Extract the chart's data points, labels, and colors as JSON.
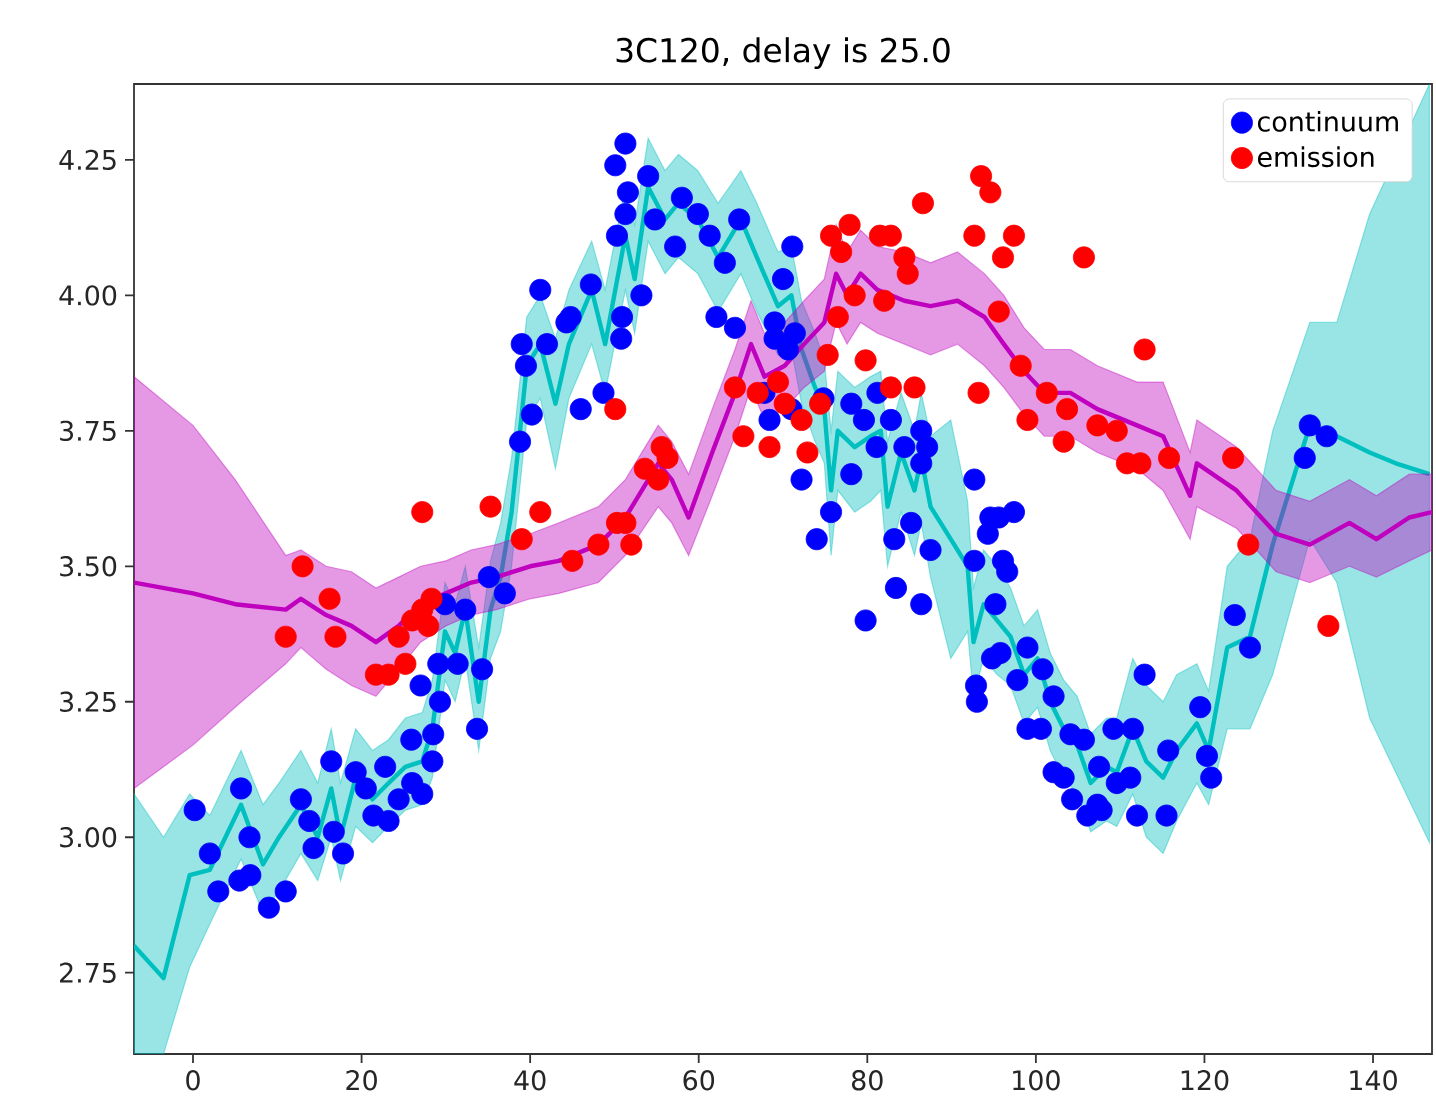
{
  "chart_data": {
    "type": "scatter",
    "title": "3C120, delay is 25.0",
    "xlim": [
      -7,
      147
    ],
    "ylim": [
      2.6,
      4.39
    ],
    "xticks": [
      0,
      20,
      40,
      60,
      80,
      100,
      120,
      140
    ],
    "yticks": [
      {
        "value": 2.75,
        "label": "2.75"
      },
      {
        "value": 3.0,
        "label": "3.00"
      },
      {
        "value": 3.25,
        "label": "3.25"
      },
      {
        "value": 3.5,
        "label": "3.50"
      },
      {
        "value": 3.75,
        "label": "3.75"
      },
      {
        "value": 4.0,
        "label": "4.00"
      },
      {
        "value": 4.25,
        "label": "4.25"
      }
    ],
    "legend": "top right",
    "series": [
      {
        "name": "continuum",
        "color": "#0000ff",
        "marker": "circle",
        "x": [
          0.2,
          2.0,
          3.0,
          5.7,
          6.7,
          5.5,
          6.8,
          9.0,
          11.0,
          12.8,
          14.3,
          13.8,
          16.4,
          16.7,
          17.8,
          19.3,
          20.5,
          21.4,
          23.2,
          22.8,
          24.4,
          25.9,
          26.0,
          27.2,
          28.4,
          28.5,
          27.0,
          29.3,
          29.1,
          31.4,
          34.3,
          33.7,
          29.9,
          32.3,
          35.1,
          37.0,
          41.2,
          39.0,
          42.0,
          39.5,
          40.2,
          38.8,
          44.3,
          51.3,
          50.1,
          54.0,
          51.6,
          58.0,
          59.9,
          51.3,
          54.8,
          50.3,
          57.2,
          61.3,
          64.8,
          63.1,
          71.1,
          70.0,
          47.2,
          53.2,
          44.8,
          50.9,
          50.8,
          62.1,
          64.3,
          48.7,
          46.0,
          69.0,
          69.0,
          71.4,
          74.8,
          78.1,
          81.2,
          82.8,
          86.4,
          87.1,
          84.4,
          86.4,
          72.2,
          75.7,
          74.0,
          78.1,
          83.2,
          85.2,
          87.5,
          92.7,
          94.6,
          94.3,
          92.7,
          96.1,
          67.8,
          68.4,
          71.0,
          70.6,
          79.6,
          81.1,
          79.8,
          83.4,
          86.4,
          92.9,
          93.0,
          94.8,
          95.2,
          97.4,
          95.6,
          96.6,
          132.5,
          134.5,
          131.9,
          95.8,
          97.8,
          99.0,
          100.8,
          102.1,
          99.0,
          100.6,
          102.1,
          103.3,
          104.1,
          105.7,
          104.3,
          106.1,
          107.3,
          107.8,
          107.5,
          109.2,
          109.6,
          111.2,
          111.5,
          112.9,
          112.0,
          115.5,
          115.7,
          119.5,
          120.3,
          120.8,
          123.6,
          125.4
        ],
        "values": [
          3.05,
          2.97,
          2.9,
          3.09,
          3.0,
          2.92,
          2.93,
          2.87,
          2.9,
          3.07,
          2.98,
          3.03,
          3.14,
          3.01,
          2.97,
          3.12,
          3.09,
          3.04,
          3.03,
          3.13,
          3.07,
          3.18,
          3.1,
          3.08,
          3.14,
          3.19,
          3.28,
          3.25,
          3.32,
          3.32,
          3.31,
          3.2,
          3.43,
          3.42,
          3.48,
          3.45,
          4.01,
          3.91,
          3.91,
          3.87,
          3.78,
          3.73,
          3.95,
          4.28,
          4.24,
          4.22,
          4.19,
          4.18,
          4.15,
          4.15,
          4.14,
          4.11,
          4.09,
          4.11,
          4.14,
          4.06,
          4.09,
          4.03,
          4.02,
          4.0,
          3.96,
          3.96,
          3.92,
          3.96,
          3.94,
          3.82,
          3.79,
          3.95,
          3.92,
          3.93,
          3.81,
          3.8,
          3.82,
          3.77,
          3.75,
          3.72,
          3.72,
          3.69,
          3.66,
          3.6,
          3.55,
          3.67,
          3.55,
          3.58,
          3.53,
          3.66,
          3.59,
          3.56,
          3.51,
          3.51,
          3.82,
          3.77,
          3.79,
          3.9,
          3.77,
          3.72,
          3.4,
          3.46,
          3.43,
          3.28,
          3.25,
          3.33,
          3.43,
          3.6,
          3.59,
          3.49,
          3.76,
          3.74,
          3.7,
          3.34,
          3.29,
          3.35,
          3.31,
          3.26,
          3.2,
          3.2,
          3.12,
          3.11,
          3.19,
          3.18,
          3.07,
          3.04,
          3.06,
          3.05,
          3.13,
          3.2,
          3.1,
          3.11,
          3.2,
          3.3,
          3.04,
          3.04,
          3.16,
          3.24,
          3.15,
          3.11,
          3.41,
          3.35
        ]
      },
      {
        "name": "emission",
        "color": "#ff0000",
        "marker": "circle",
        "x": [
          13.0,
          27.2,
          35.3,
          41.2,
          39.0,
          16.2,
          11.0,
          16.9,
          21.7,
          23.2,
          25.2,
          24.4,
          26.0,
          27.2,
          27.9,
          28.3,
          50.1,
          55.6,
          53.6,
          56.3,
          55.2,
          51.3,
          50.3,
          48.1,
          52.0,
          45.0,
          64.3,
          67.0,
          69.4,
          70.2,
          72.2,
          65.3,
          68.4,
          72.9,
          74.4,
          75.3,
          79.8,
          75.7,
          77.9,
          76.9,
          76.5,
          81.5,
          82.8,
          84.4,
          84.8,
          82.0,
          78.5,
          86.6,
          82.8,
          85.6,
          93.2,
          92.7,
          93.5,
          94.6,
          96.1,
          95.6,
          97.4,
          105.7,
          98.2,
          112.9,
          99.0,
          103.3,
          103.7,
          101.3,
          107.3,
          109.6,
          110.8,
          112.4,
          115.8,
          123.4,
          125.2,
          134.7
        ],
        "values": [
          3.5,
          3.6,
          3.61,
          3.6,
          3.55,
          3.44,
          3.37,
          3.37,
          3.3,
          3.3,
          3.32,
          3.37,
          3.4,
          3.42,
          3.39,
          3.44,
          3.79,
          3.72,
          3.68,
          3.7,
          3.66,
          3.58,
          3.58,
          3.54,
          3.54,
          3.51,
          3.83,
          3.82,
          3.84,
          3.8,
          3.77,
          3.74,
          3.72,
          3.71,
          3.8,
          3.89,
          3.88,
          4.11,
          4.13,
          4.08,
          3.96,
          4.11,
          4.11,
          4.07,
          4.04,
          3.99,
          4.0,
          4.17,
          3.83,
          3.83,
          3.82,
          4.11,
          4.22,
          4.19,
          4.07,
          3.97,
          4.11,
          4.07,
          3.87,
          3.9,
          3.77,
          3.73,
          3.79,
          3.82,
          3.76,
          3.75,
          3.69,
          3.69,
          3.7,
          3.7,
          3.54,
          3.39
        ]
      },
      {
        "type": "line",
        "color": "#00bfbf",
        "x": [
          -7,
          -3.5,
          -0.4,
          2.0,
          5.7,
          8.3,
          10.2,
          12.8,
          14.8,
          16.4,
          17.5,
          19.3,
          21.3,
          23.2,
          25.2,
          27.2,
          28.4,
          29.9,
          31.1,
          32.3,
          33.9,
          35.3,
          36.5,
          37.8,
          39.6,
          41.2,
          43.0,
          44.6,
          47.3,
          48.9,
          51.3,
          52.4,
          54.0,
          56.0,
          57.6,
          59.9,
          62.3,
          65.0,
          66.9,
          69.4,
          71.0,
          72.2,
          73.8,
          74.9,
          75.7,
          76.5,
          78.5,
          80.4,
          81.6,
          82.4,
          84.0,
          85.6,
          86.4,
          87.5,
          89.9,
          91.9,
          92.6,
          93.8,
          95.4,
          97.0,
          98.6,
          100.2,
          101.7,
          103.3,
          104.9,
          106.5,
          108.4,
          109.6,
          111.5,
          113.1,
          115.1,
          116.7,
          119.1,
          120.5,
          122.7,
          125.4,
          128.1,
          132.5,
          135.7,
          139.6,
          142.7,
          146.7
        ],
        "values": [
          2.8,
          2.74,
          2.93,
          2.94,
          3.06,
          2.95,
          3.0,
          3.06,
          3.0,
          3.09,
          3.0,
          3.11,
          3.07,
          3.1,
          3.13,
          3.14,
          3.2,
          3.38,
          3.34,
          3.42,
          3.25,
          3.42,
          3.48,
          3.6,
          3.87,
          3.91,
          3.8,
          3.91,
          4.01,
          3.91,
          4.11,
          4.03,
          4.2,
          4.14,
          4.17,
          4.14,
          4.07,
          4.14,
          4.07,
          3.98,
          4.0,
          3.9,
          3.83,
          3.79,
          3.64,
          3.75,
          3.72,
          3.74,
          3.75,
          3.61,
          3.71,
          3.64,
          3.7,
          3.61,
          3.55,
          3.5,
          3.36,
          3.43,
          3.4,
          3.37,
          3.3,
          3.33,
          3.25,
          3.2,
          3.17,
          3.1,
          3.13,
          3.12,
          3.2,
          3.14,
          3.11,
          3.16,
          3.21,
          3.16,
          3.35,
          3.37,
          3.54,
          3.76,
          3.74,
          3.71,
          3.69,
          3.67
        ],
        "lower": [
          2.6,
          2.6,
          2.76,
          2.84,
          2.96,
          2.86,
          2.9,
          2.97,
          2.92,
          3.0,
          2.92,
          3.02,
          2.99,
          3.02,
          3.05,
          3.06,
          3.11,
          3.29,
          3.25,
          3.33,
          3.16,
          3.33,
          3.38,
          3.5,
          3.77,
          3.81,
          3.68,
          3.81,
          3.91,
          3.82,
          4.01,
          3.93,
          4.1,
          4.04,
          4.07,
          4.04,
          3.97,
          4.04,
          3.97,
          3.89,
          3.9,
          3.8,
          3.73,
          3.69,
          3.52,
          3.64,
          3.6,
          3.62,
          3.64,
          3.5,
          3.6,
          3.52,
          3.58,
          3.48,
          3.33,
          3.38,
          3.26,
          3.33,
          3.3,
          3.28,
          3.21,
          3.24,
          3.16,
          3.11,
          3.08,
          3.01,
          3.03,
          3.02,
          3.08,
          3.0,
          2.97,
          3.03,
          3.1,
          3.06,
          3.2,
          3.2,
          3.3,
          3.55,
          3.47,
          3.22,
          null,
          2.99
        ],
        "upper": [
          3.08,
          3.0,
          3.08,
          3.04,
          3.16,
          3.06,
          3.1,
          3.16,
          3.1,
          3.2,
          3.1,
          3.2,
          3.16,
          3.18,
          3.22,
          3.23,
          3.29,
          3.47,
          3.43,
          3.5,
          3.35,
          3.51,
          3.58,
          3.7,
          3.96,
          4.0,
          3.92,
          4.01,
          4.1,
          4.01,
          4.2,
          4.13,
          4.29,
          4.23,
          4.26,
          4.23,
          4.17,
          4.23,
          4.17,
          4.08,
          4.09,
          3.99,
          3.93,
          3.88,
          3.75,
          3.86,
          3.83,
          3.85,
          3.86,
          3.73,
          3.82,
          3.75,
          3.82,
          3.74,
          3.77,
          3.62,
          3.46,
          3.53,
          3.5,
          3.46,
          3.39,
          3.42,
          3.34,
          3.29,
          3.26,
          3.19,
          3.22,
          3.22,
          3.33,
          3.28,
          3.25,
          3.3,
          3.32,
          3.27,
          3.5,
          3.55,
          3.75,
          3.95,
          3.95,
          4.15,
          null,
          4.39
        ]
      },
      {
        "type": "line",
        "color": "#bf00bf",
        "x": [
          -7,
          0,
          5,
          11.0,
          12.8,
          15.8,
          18.8,
          21.7,
          24.4,
          27.0,
          30.0,
          33.0,
          36.0,
          40.0,
          43.4,
          48.1,
          51.3,
          55.2,
          56.8,
          58.8,
          61.6,
          64.3,
          66.2,
          67.8,
          70.2,
          72.5,
          74.9,
          76.3,
          77.6,
          79.2,
          81.2,
          84.4,
          87.5,
          90.7,
          93.9,
          96.2,
          98.6,
          101.0,
          104.1,
          107.3,
          112.0,
          115.1,
          118.3,
          119.1,
          123.8,
          128.5,
          132.5,
          137.2,
          140.4,
          144.3,
          147.0
        ],
        "values": [
          3.47,
          3.45,
          3.43,
          3.42,
          3.44,
          3.41,
          3.39,
          3.36,
          3.39,
          3.43,
          3.45,
          3.47,
          3.48,
          3.5,
          3.51,
          3.54,
          3.59,
          3.69,
          3.66,
          3.59,
          3.71,
          3.82,
          3.91,
          3.85,
          3.87,
          3.91,
          3.95,
          4.04,
          4.0,
          4.04,
          4.01,
          3.99,
          3.98,
          3.99,
          3.96,
          3.91,
          3.86,
          3.82,
          3.82,
          3.79,
          3.76,
          3.74,
          3.63,
          3.69,
          3.64,
          3.56,
          3.54,
          3.58,
          3.55,
          3.59,
          3.6
        ],
        "lower": [
          3.09,
          3.17,
          3.24,
          3.32,
          3.35,
          3.31,
          3.28,
          3.26,
          3.31,
          3.36,
          3.39,
          3.41,
          3.42,
          3.44,
          3.45,
          3.47,
          3.52,
          3.61,
          3.58,
          3.52,
          3.63,
          3.74,
          3.83,
          3.77,
          3.79,
          3.83,
          3.86,
          3.95,
          3.91,
          3.95,
          3.93,
          3.91,
          3.89,
          3.91,
          3.87,
          3.83,
          3.78,
          3.74,
          3.74,
          3.71,
          3.68,
          3.64,
          3.55,
          3.61,
          3.57,
          3.49,
          3.47,
          3.5,
          3.48,
          3.51,
          3.53
        ],
        "upper": [
          3.85,
          3.76,
          3.66,
          3.52,
          3.53,
          3.5,
          3.49,
          3.46,
          3.48,
          3.5,
          3.51,
          3.53,
          3.54,
          3.56,
          3.58,
          3.61,
          3.66,
          3.76,
          3.73,
          3.67,
          3.79,
          3.9,
          3.99,
          3.93,
          3.95,
          3.99,
          4.03,
          4.13,
          4.08,
          4.12,
          4.09,
          4.08,
          4.06,
          4.08,
          4.04,
          4.0,
          3.94,
          3.9,
          3.9,
          3.87,
          3.84,
          3.84,
          3.71,
          3.77,
          3.72,
          3.64,
          3.62,
          3.66,
          3.63,
          3.67,
          3.67
        ]
      }
    ]
  }
}
